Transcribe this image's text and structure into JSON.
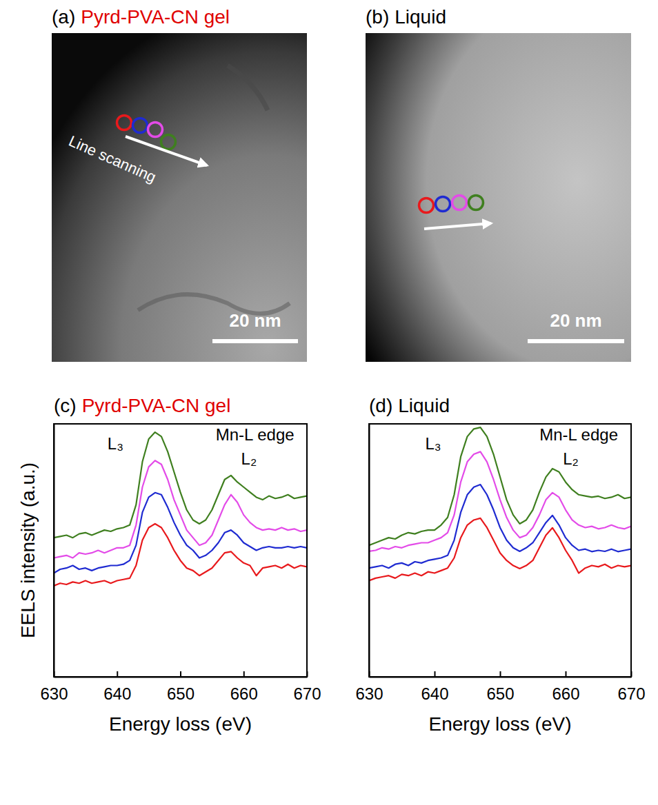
{
  "images": [
    {
      "letter": "(a)",
      "title": "Pyrd-PVA-CN gel",
      "annotation": "Line scanning",
      "scale_bar": "20 nm"
    },
    {
      "letter": "(b)",
      "title": "Liquid",
      "scale_bar": "20 nm"
    }
  ],
  "chart_data": [
    {
      "type": "line",
      "panel_label": "(c)",
      "title": "Pyrd-PVA-CN gel",
      "x_label": "Energy loss (eV)",
      "y_label": "EELS intensity (a.u.)",
      "annotations": [
        "L₃",
        "Mn-L edge",
        "L₂"
      ],
      "x": [
        630,
        631,
        632,
        633,
        634,
        635,
        636,
        637,
        638,
        639,
        640,
        641,
        642,
        643,
        644,
        645,
        646,
        647,
        648,
        649,
        650,
        651,
        652,
        653,
        654,
        655,
        656,
        657,
        658,
        659,
        660,
        661,
        662,
        663,
        664,
        665,
        666,
        667,
        668,
        669,
        670
      ],
      "xlim": [
        630,
        670
      ],
      "xticks": [
        630,
        640,
        650,
        660,
        670
      ],
      "ylim": [
        0,
        100
      ],
      "tick_labels": "x",
      "series": [
        {
          "color": "#e8191c",
          "values": [
            36,
            37,
            36.5,
            37.5,
            37,
            38,
            37,
            37.5,
            38,
            37,
            38,
            38.5,
            39,
            44,
            54,
            59,
            60.5,
            59,
            55,
            50,
            46,
            43,
            42,
            40,
            41.5,
            43,
            46,
            49,
            49.5,
            47,
            45,
            44,
            40,
            43,
            43.5,
            44,
            43,
            44.5,
            43,
            44,
            43.5
          ]
        },
        {
          "color": "#1f2bd1",
          "values": [
            41,
            42.5,
            43,
            44,
            42.5,
            43,
            42,
            43,
            43.5,
            44,
            44,
            44.5,
            46,
            52,
            65,
            71,
            72.8,
            72,
            67,
            61,
            56,
            52,
            50,
            47,
            48,
            50,
            53,
            57,
            58,
            56,
            53,
            51.5,
            50,
            51,
            51.5,
            51,
            51,
            51.5,
            51,
            51.5,
            51
          ]
        },
        {
          "color": "#e34be8",
          "values": [
            47,
            47.5,
            48,
            47,
            49,
            48.5,
            49,
            50,
            49,
            50,
            51,
            51,
            52,
            60,
            75,
            83,
            85.5,
            84,
            78,
            70,
            64,
            58,
            55,
            52,
            53,
            56,
            62,
            68,
            72,
            69,
            64,
            61,
            59,
            58,
            58.5,
            58,
            59,
            58,
            58.5,
            57.5,
            58
          ]
        },
        {
          "color": "#3f7f1f",
          "values": [
            55,
            55.5,
            56,
            55,
            56.5,
            57,
            56,
            57,
            58,
            57.5,
            58.5,
            59,
            60,
            68,
            85,
            94,
            96.7,
            95,
            89,
            81,
            73,
            66,
            62,
            60.5,
            62,
            66,
            72,
            78,
            79.6,
            77,
            75,
            73,
            71,
            70,
            71.5,
            70.5,
            71,
            72,
            70.5,
            71,
            71.5
          ]
        }
      ]
    },
    {
      "type": "line",
      "panel_label": "(d)",
      "title": "Liquid",
      "x_label": "Energy loss (eV)",
      "annotations": [
        "L₃",
        "Mn-L edge",
        "L₂"
      ],
      "x": [
        630,
        631,
        632,
        633,
        634,
        635,
        636,
        637,
        638,
        639,
        640,
        641,
        642,
        643,
        644,
        645,
        646,
        647,
        648,
        649,
        650,
        651,
        652,
        653,
        654,
        655,
        656,
        657,
        658,
        659,
        660,
        661,
        662,
        663,
        664,
        665,
        666,
        667,
        668,
        669,
        670
      ],
      "xlim": [
        630,
        670
      ],
      "xticks": [
        630,
        640,
        650,
        660,
        670
      ],
      "ylim": [
        0,
        100
      ],
      "tick_labels": "x",
      "series": [
        {
          "color": "#e8191c",
          "values": [
            38,
            39,
            39.5,
            40,
            39,
            40.5,
            40,
            41,
            40,
            41.5,
            41,
            42,
            43,
            47,
            55,
            60,
            62,
            62.7,
            59,
            54,
            49,
            46,
            44,
            42.8,
            44,
            46,
            51,
            56,
            58.9,
            55,
            50,
            46,
            41,
            43,
            44,
            43.5,
            44.5,
            43,
            44,
            43.5,
            44
          ]
        },
        {
          "color": "#1f2bd1",
          "values": [
            43,
            43.5,
            44,
            43,
            44.5,
            45,
            44,
            45.5,
            45,
            46,
            46.5,
            47,
            48,
            54,
            65,
            72,
            75,
            76,
            72,
            66,
            59,
            54,
            51,
            49.6,
            51,
            53,
            57,
            61,
            63.8,
            60,
            55,
            52,
            50,
            50.5,
            49.5,
            50,
            49.6,
            50.5,
            49.5,
            50,
            50.5
          ]
        },
        {
          "color": "#e34be8",
          "values": [
            49.6,
            50,
            51,
            50.5,
            51.5,
            51,
            52,
            52.5,
            53,
            53,
            54,
            55,
            57,
            64,
            77,
            85,
            88,
            89,
            85,
            78,
            70,
            63,
            58,
            55,
            56,
            59,
            64,
            70,
            72.8,
            71,
            66,
            62,
            60,
            59,
            59.5,
            58.5,
            59,
            60,
            59,
            58.5,
            59.5
          ]
        },
        {
          "color": "#3f7f1f",
          "values": [
            52,
            53,
            54,
            55,
            54.5,
            56,
            57,
            56.5,
            57.5,
            58,
            58,
            60,
            63,
            72,
            87,
            95,
            98,
            98.6,
            95,
            88,
            79,
            70,
            64,
            60.5,
            62,
            66,
            73,
            79,
            82.3,
            81,
            77,
            74,
            72,
            71.5,
            71,
            71.4,
            70.5,
            71,
            72,
            70.5,
            71
          ]
        }
      ]
    }
  ]
}
